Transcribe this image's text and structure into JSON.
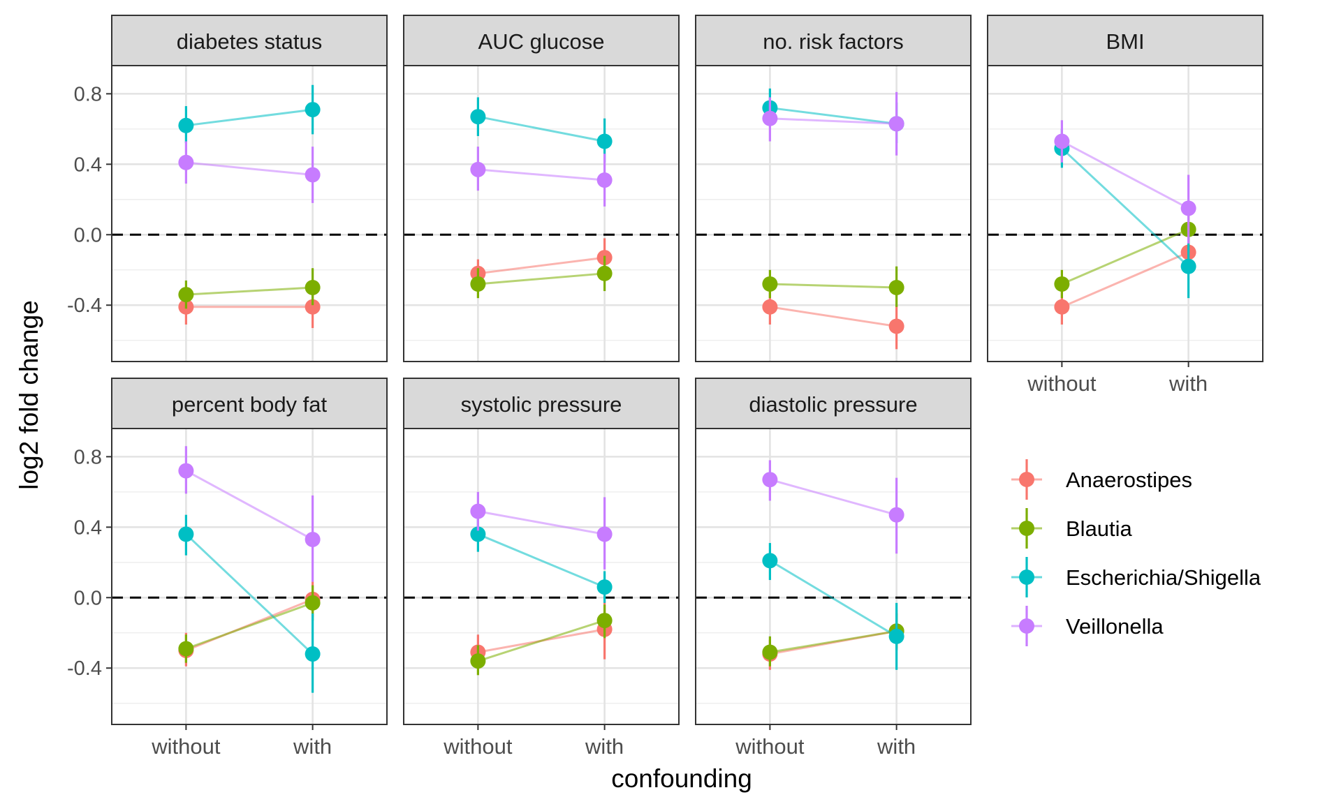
{
  "chart_data": {
    "type": "line",
    "layout": "facet-grid",
    "xlabel": "confounding",
    "ylabel": "log2 fold change",
    "categories": [
      "without",
      "with"
    ],
    "ylim": [
      -0.72,
      0.96
    ],
    "y_ticks": [
      "0.8",
      "0.4",
      "0.0",
      "-0.4"
    ],
    "reference_line": {
      "y": 0,
      "style": "dashed"
    },
    "grid": true,
    "legend": {
      "placement": "right",
      "entries": [
        "Anaerostipes",
        "Blautia",
        "Escherichia/Shigella",
        "Veillonella"
      ]
    },
    "colors": {
      "Anaerostipes": "#F8766D",
      "Blautia": "#7CAE00",
      "Escherichia/Shigella": "#00BFC4",
      "Veillonella": "#C77CFF"
    },
    "panels": [
      {
        "title": "diabetes status",
        "series": [
          {
            "name": "Anaerostipes",
            "values": [
              -0.41,
              -0.41
            ],
            "ci": [
              [
                -0.51,
                -0.32
              ],
              [
                -0.53,
                -0.28
              ]
            ]
          },
          {
            "name": "Blautia",
            "values": [
              -0.34,
              -0.3
            ],
            "ci": [
              [
                -0.42,
                -0.26
              ],
              [
                -0.4,
                -0.19
              ]
            ]
          },
          {
            "name": "Escherichia/Shigella",
            "values": [
              0.62,
              0.71
            ],
            "ci": [
              [
                0.52,
                0.73
              ],
              [
                0.57,
                0.85
              ]
            ]
          },
          {
            "name": "Veillonella",
            "values": [
              0.41,
              0.34
            ],
            "ci": [
              [
                0.29,
                0.53
              ],
              [
                0.18,
                0.5
              ]
            ]
          }
        ]
      },
      {
        "title": "AUC glucose",
        "series": [
          {
            "name": "Anaerostipes",
            "values": [
              -0.22,
              -0.13
            ],
            "ci": [
              [
                -0.3,
                -0.14
              ],
              [
                -0.23,
                -0.02
              ]
            ]
          },
          {
            "name": "Blautia",
            "values": [
              -0.28,
              -0.22
            ],
            "ci": [
              [
                -0.36,
                -0.19
              ],
              [
                -0.32,
                -0.12
              ]
            ]
          },
          {
            "name": "Escherichia/Shigella",
            "values": [
              0.67,
              0.53
            ],
            "ci": [
              [
                0.56,
                0.78
              ],
              [
                0.41,
                0.66
              ]
            ]
          },
          {
            "name": "Veillonella",
            "values": [
              0.37,
              0.31
            ],
            "ci": [
              [
                0.25,
                0.5
              ],
              [
                0.16,
                0.46
              ]
            ]
          }
        ]
      },
      {
        "title": "no. risk factors",
        "series": [
          {
            "name": "Anaerostipes",
            "values": [
              -0.41,
              -0.52
            ],
            "ci": [
              [
                -0.51,
                -0.32
              ],
              [
                -0.65,
                -0.4
              ]
            ]
          },
          {
            "name": "Blautia",
            "values": [
              -0.28,
              -0.3
            ],
            "ci": [
              [
                -0.36,
                -0.2
              ],
              [
                -0.41,
                -0.18
              ]
            ]
          },
          {
            "name": "Escherichia/Shigella",
            "values": [
              0.72,
              0.63
            ],
            "ci": [
              [
                0.62,
                0.83
              ],
              [
                0.52,
                0.75
              ]
            ]
          },
          {
            "name": "Veillonella",
            "values": [
              0.66,
              0.63
            ],
            "ci": [
              [
                0.53,
                0.78
              ],
              [
                0.45,
                0.81
              ]
            ]
          }
        ]
      },
      {
        "title": "BMI",
        "series": [
          {
            "name": "Anaerostipes",
            "values": [
              -0.41,
              -0.1
            ],
            "ci": [
              [
                -0.51,
                -0.32
              ],
              [
                -0.22,
                0.02
              ]
            ]
          },
          {
            "name": "Blautia",
            "values": [
              -0.28,
              0.03
            ],
            "ci": [
              [
                -0.36,
                -0.2
              ],
              [
                -0.07,
                0.13
              ]
            ]
          },
          {
            "name": "Escherichia/Shigella",
            "values": [
              0.49,
              -0.18
            ],
            "ci": [
              [
                0.38,
                0.6
              ],
              [
                -0.36,
                0.0
              ]
            ]
          },
          {
            "name": "Veillonella",
            "values": [
              0.53,
              0.15
            ],
            "ci": [
              [
                0.41,
                0.65
              ],
              [
                -0.05,
                0.34
              ]
            ]
          }
        ]
      },
      {
        "title": "percent body fat",
        "series": [
          {
            "name": "Anaerostipes",
            "values": [
              -0.3,
              -0.01
            ],
            "ci": [
              [
                -0.39,
                -0.2
              ],
              [
                -0.11,
                0.09
              ]
            ]
          },
          {
            "name": "Blautia",
            "values": [
              -0.29,
              -0.03
            ],
            "ci": [
              [
                -0.37,
                -0.21
              ],
              [
                -0.13,
                0.07
              ]
            ]
          },
          {
            "name": "Escherichia/Shigella",
            "values": [
              0.36,
              -0.32
            ],
            "ci": [
              [
                0.24,
                0.47
              ],
              [
                -0.54,
                -0.09
              ]
            ]
          },
          {
            "name": "Veillonella",
            "values": [
              0.72,
              0.33
            ],
            "ci": [
              [
                0.59,
                0.86
              ],
              [
                0.09,
                0.58
              ]
            ]
          }
        ]
      },
      {
        "title": "systolic pressure",
        "series": [
          {
            "name": "Anaerostipes",
            "values": [
              -0.31,
              -0.18
            ],
            "ci": [
              [
                -0.4,
                -0.21
              ],
              [
                -0.35,
                -0.02
              ]
            ]
          },
          {
            "name": "Blautia",
            "values": [
              -0.36,
              -0.13
            ],
            "ci": [
              [
                -0.44,
                -0.27
              ],
              [
                -0.23,
                -0.04
              ]
            ]
          },
          {
            "name": "Escherichia/Shigella",
            "values": [
              0.36,
              0.06
            ],
            "ci": [
              [
                0.26,
                0.46
              ],
              [
                -0.03,
                0.15
              ]
            ]
          },
          {
            "name": "Veillonella",
            "values": [
              0.49,
              0.36
            ],
            "ci": [
              [
                0.38,
                0.6
              ],
              [
                0.16,
                0.57
              ]
            ]
          }
        ]
      },
      {
        "title": "diastolic pressure",
        "series": [
          {
            "name": "Anaerostipes",
            "values": [
              -0.32,
              -0.19
            ],
            "ci": [
              [
                -0.41,
                -0.24
              ],
              [
                -0.3,
                -0.07
              ]
            ]
          },
          {
            "name": "Blautia",
            "values": [
              -0.31,
              -0.19
            ],
            "ci": [
              [
                -0.39,
                -0.22
              ],
              [
                -0.29,
                -0.09
              ]
            ]
          },
          {
            "name": "Escherichia/Shigella",
            "values": [
              0.21,
              -0.22
            ],
            "ci": [
              [
                0.1,
                0.31
              ],
              [
                -0.41,
                -0.03
              ]
            ]
          },
          {
            "name": "Veillonella",
            "values": [
              0.67,
              0.47
            ],
            "ci": [
              [
                0.55,
                0.78
              ],
              [
                0.25,
                0.68
              ]
            ]
          }
        ]
      }
    ]
  }
}
